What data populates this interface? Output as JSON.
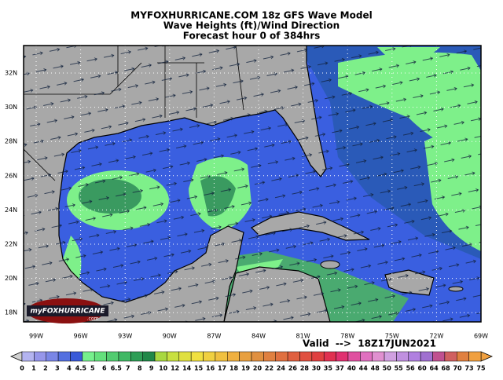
{
  "title": [
    "MYFOXHURRICANE.COM 18z GFS Wave Model",
    "Wave Heights (ft)/Wind Direction",
    "Forecast hour 0 of 384hrs"
  ],
  "lat_labels": [
    "32N",
    "30N",
    "28N",
    "26N",
    "24N",
    "22N",
    "20N",
    "18N"
  ],
  "lon_labels": [
    "99W",
    "96W",
    "93W",
    "90W",
    "87W",
    "84W",
    "81W",
    "78W",
    "75W",
    "72W",
    "69W"
  ],
  "valid": "Valid  -->  18Z17JUN2021",
  "logo": {
    "brand": "myFOXHURRICANE",
    "suffix": ".com"
  },
  "colorbar": {
    "labels": [
      "0",
      "1",
      "2",
      "3",
      "4",
      "4.5",
      "5",
      "6",
      "6.5",
      "7",
      "8",
      "9",
      "10",
      "12",
      "14",
      "15",
      "16",
      "17",
      "18",
      "19",
      "20",
      "22",
      "24",
      "26",
      "28",
      "30",
      "35",
      "37",
      "40",
      "44",
      "48",
      "50",
      "55",
      "56",
      "60",
      "64",
      "68",
      "70",
      "73",
      "75"
    ],
    "colors": [
      "#b4b4f0",
      "#9696ea",
      "#7a86e6",
      "#5470e0",
      "#3a5ad8",
      "#76f08c",
      "#64e07c",
      "#52cc70",
      "#40b864",
      "#2e9e56",
      "#208848",
      "#a8d840",
      "#c8e040",
      "#e0e040",
      "#f0e040",
      "#f0d040",
      "#f0c040",
      "#f0b040",
      "#e8a040",
      "#e09040",
      "#e08040",
      "#e07040",
      "#e06040",
      "#e05040",
      "#e04040",
      "#e03050",
      "#e03070",
      "#e050a0",
      "#e070c0",
      "#e090d0",
      "#d0a0e0",
      "#c090e0",
      "#b080e0",
      "#a070d0",
      "#c05090",
      "#d06060",
      "#e08040",
      "#f0a040"
    ]
  }
}
